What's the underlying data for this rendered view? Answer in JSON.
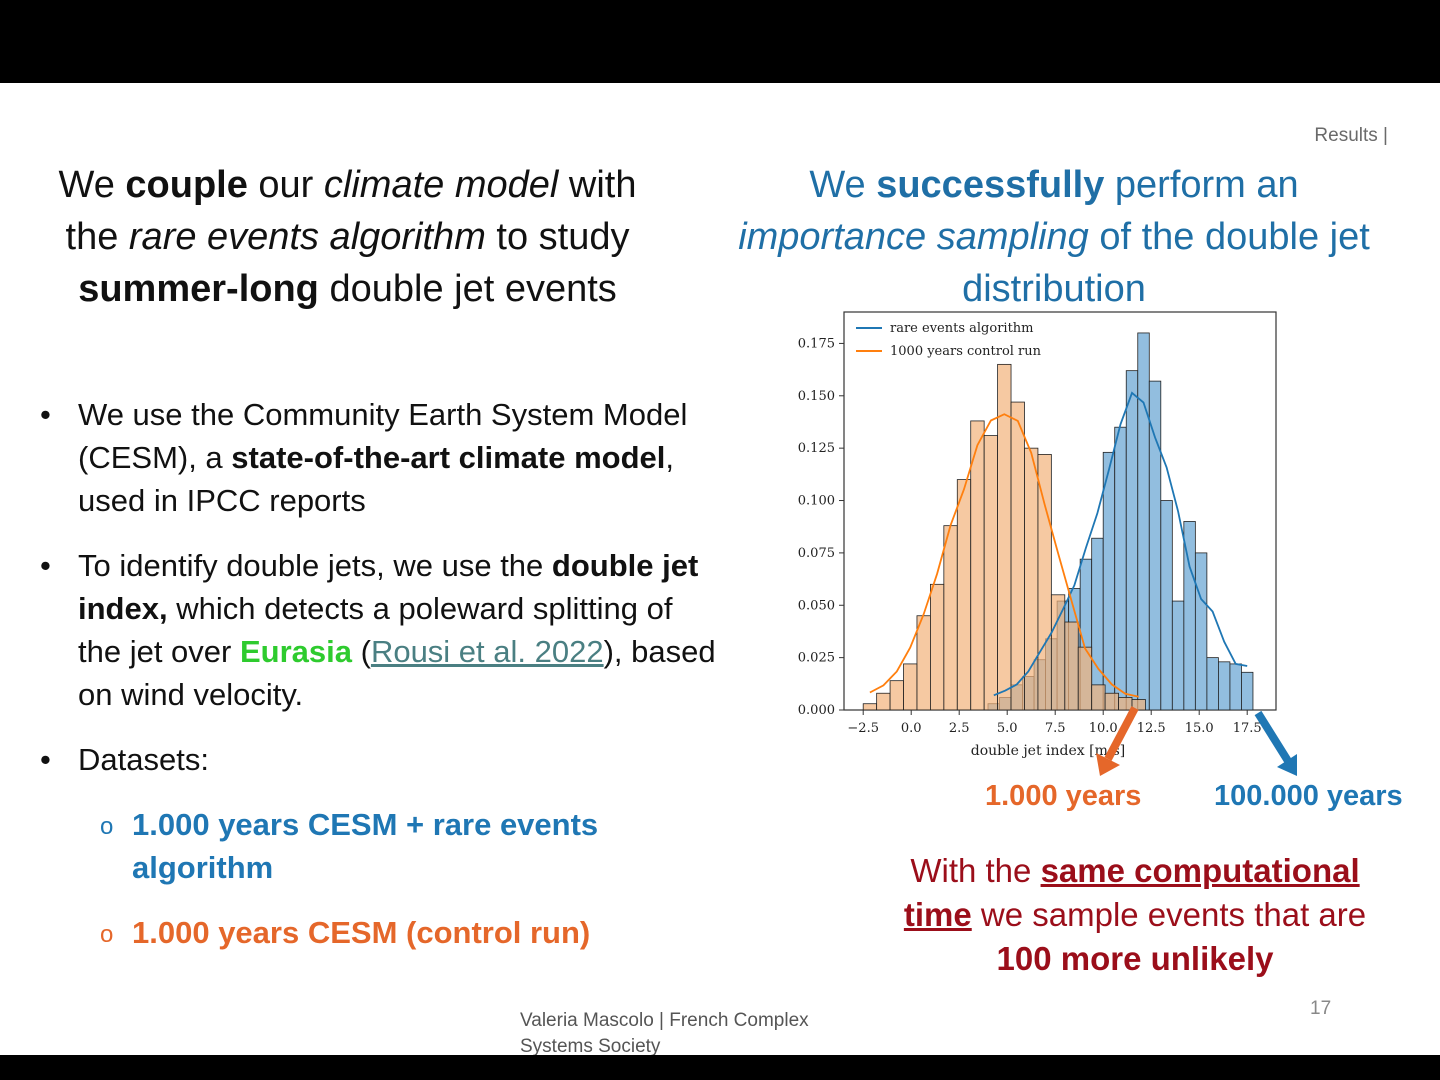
{
  "section_label": "Results |",
  "left_title": {
    "parts": [
      {
        "t": "We ",
        "s": "n"
      },
      {
        "t": "couple",
        "s": "b"
      },
      {
        "t": " our ",
        "s": "n"
      },
      {
        "t": "climate model",
        "s": "i"
      },
      {
        "t": " with the ",
        "s": "n"
      },
      {
        "t": "rare events algorithm",
        "s": "i"
      },
      {
        "t": " to study ",
        "s": "n"
      },
      {
        "t": "summer-long",
        "s": "b"
      },
      {
        "t": " double jet events",
        "s": "n"
      }
    ]
  },
  "right_title": {
    "parts": [
      {
        "t": "We ",
        "s": "n"
      },
      {
        "t": "successfully",
        "s": "b"
      },
      {
        "t": " perform an ",
        "s": "n"
      },
      {
        "t": "importance sampling",
        "s": "i"
      },
      {
        "t": " of the double jet distribution",
        "s": "n"
      }
    ]
  },
  "bullets": {
    "b1": [
      {
        "t": "We use the Community Earth System Model (CESM), a ",
        "s": "n"
      },
      {
        "t": "state-of-the-art climate model",
        "s": "b"
      },
      {
        "t": ", used in IPCC reports",
        "s": "n"
      }
    ],
    "b2": [
      {
        "t": "To identify double jets, we use the ",
        "s": "n"
      },
      {
        "t": "double jet index,",
        "s": "b"
      },
      {
        "t": " which detects a poleward splitting of the jet over ",
        "s": "n"
      },
      {
        "t": "Eurasia",
        "s": "green"
      },
      {
        "t": " (",
        "s": "n"
      },
      {
        "t": "Rousi et al. 2022",
        "s": "link"
      },
      {
        "t": "), based on wind velocity.",
        "s": "n"
      }
    ],
    "b3": "Datasets:",
    "sub1": "1.000 years CESM + rare events algorithm",
    "sub2": "1.000 years CESM (control run)",
    "sub_marker": "o"
  },
  "arrow_labels": {
    "left": "1.000 years",
    "right": "100.000 years"
  },
  "conclusion": [
    {
      "t": "With the ",
      "s": "n"
    },
    {
      "t": "same computational time",
      "s": "bu"
    },
    {
      "t": " we sample events that are ",
      "s": "n"
    },
    {
      "t": "100 more unlikely",
      "s": "b"
    }
  ],
  "footer": "Valeria Mascolo | French Complex Systems Society",
  "page_number": "17",
  "colors": {
    "rare": "#1f77b4",
    "rare_fill": "#7fb3d9",
    "control": "#ff7f0e",
    "control_fill": "#f2b27a",
    "arrow_left": "#e5672a",
    "arrow_right": "#1f77b4"
  },
  "chart_data": {
    "type": "bar",
    "xlabel": "double jet index [m/s]",
    "ylabel": "",
    "xlim": [
      -3.5,
      19
    ],
    "ylim": [
      0,
      0.19
    ],
    "xticks": [
      -2.5,
      0.0,
      2.5,
      5.0,
      7.5,
      10.0,
      12.5,
      15.0,
      17.5
    ],
    "xtick_labels": [
      "−2.5",
      "0.0",
      "2.5",
      "5.0",
      "7.5",
      "10.0",
      "12.5",
      "15.0",
      "17.5"
    ],
    "yticks": [
      0,
      0.025,
      0.05,
      0.075,
      0.1,
      0.125,
      0.15,
      0.175
    ],
    "ytick_labels": [
      "0.000",
      "0.025",
      "0.050",
      "0.075",
      "0.100",
      "0.125",
      "0.150",
      "0.175"
    ],
    "legend_position": "top-left",
    "series": [
      {
        "name": "rare events algorithm",
        "bin_edges": [
          4.0,
          4.6,
          5.2,
          5.8,
          6.4,
          7.0,
          7.6,
          8.2,
          8.8,
          9.4,
          10.0,
          10.6,
          11.2,
          11.8,
          12.4,
          13.0,
          13.6,
          14.2,
          14.8,
          15.4,
          16.0,
          16.6,
          17.2,
          17.8
        ],
        "values": [
          0.003,
          0.006,
          0.012,
          0.016,
          0.024,
          0.034,
          0.052,
          0.058,
          0.072,
          0.082,
          0.123,
          0.135,
          0.162,
          0.18,
          0.157,
          0.1,
          0.052,
          0.09,
          0.075,
          0.025,
          0.023,
          0.022,
          0.018
        ]
      },
      {
        "name": "1000 years control run",
        "bin_edges": [
          -2.5,
          -1.8,
          -1.1,
          -0.4,
          0.3,
          1.0,
          1.7,
          2.4,
          3.1,
          3.8,
          4.5,
          5.2,
          5.9,
          6.6,
          7.3,
          8.0,
          8.7,
          9.4,
          10.1,
          10.8,
          11.5,
          12.2
        ],
        "values": [
          0.003,
          0.008,
          0.014,
          0.022,
          0.045,
          0.06,
          0.088,
          0.11,
          0.138,
          0.131,
          0.165,
          0.147,
          0.125,
          0.122,
          0.055,
          0.042,
          0.03,
          0.012,
          0.008,
          0.006,
          0.005
        ]
      }
    ]
  }
}
